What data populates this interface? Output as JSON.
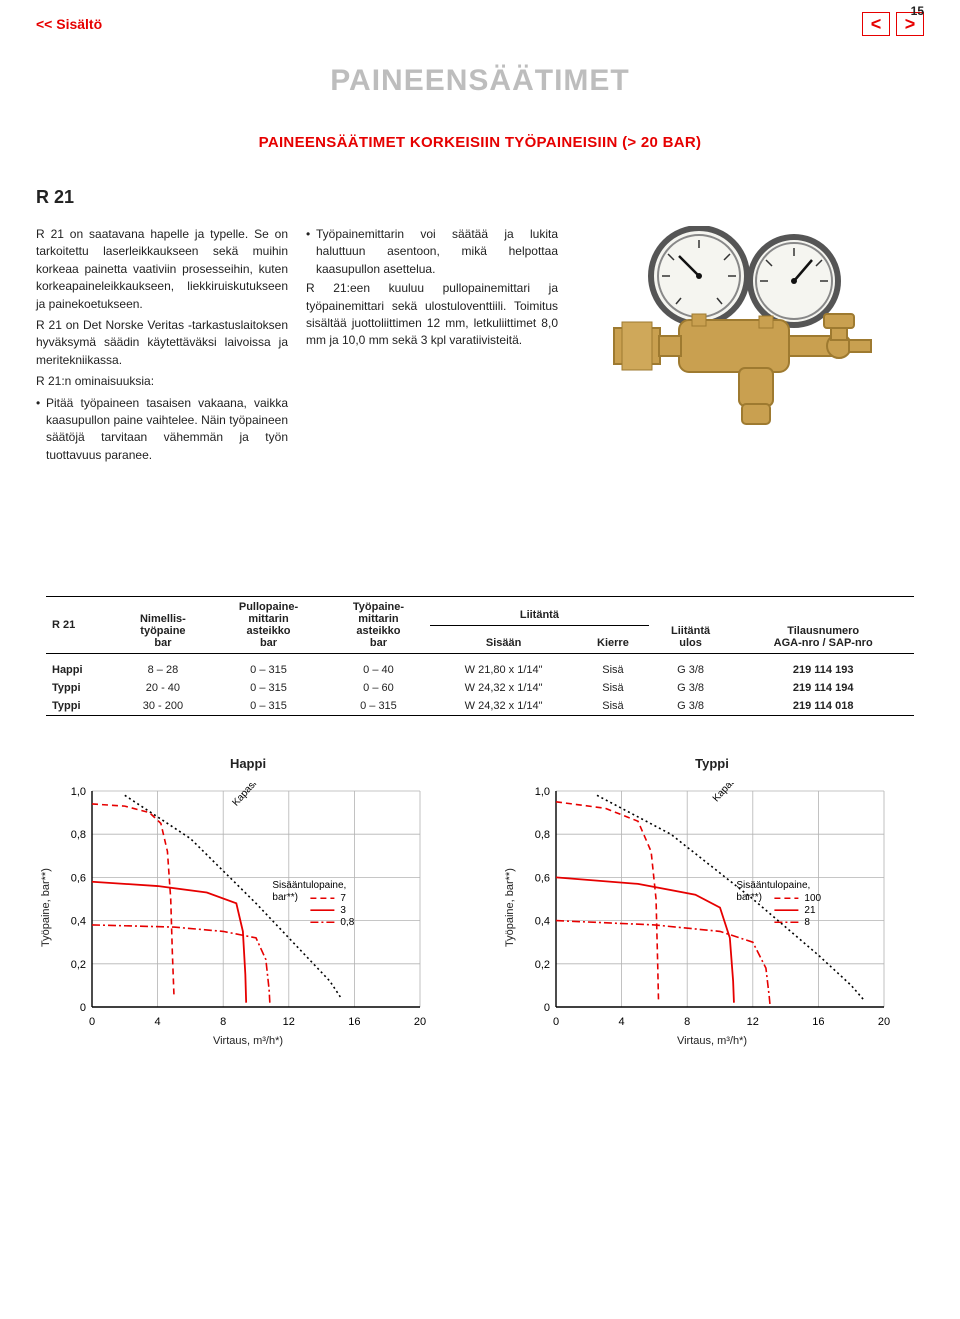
{
  "page_number": "15",
  "nav": {
    "back_link": "<< Sisältö",
    "prev": "<",
    "next": ">"
  },
  "title": "PAINEENSÄÄTIMET",
  "subtitle": "PAINEENSÄÄTIMET KORKEISIIN TYÖPAINEISIIN (> 20 BAR)",
  "product_heading": "R 21",
  "col1": {
    "p1": "R 21 on saatavana hapelle ja typelle. Se on tarkoitettu laserleikkaukseen sekä muihin korkeaa painetta vaativiin prosesseihin, kuten korkeapaineleikkaukseen, liekkiruiskutukseen ja painekoetukseen.",
    "p2": "R 21 on Det Norske Veritas -tarkastuslaitoksen hyväksymä säädin käytettäväksi laivoissa ja meritekniikassa.",
    "p3": "R 21:n ominaisuuksia:",
    "b1": "Pitää työpaineen tasaisen vakaana, vaikka kaasupullon paine vaihtelee. Näin työpaineen säätöjä tarvitaan vähemmän ja työn tuottavuus paranee."
  },
  "col2": {
    "b1": "Työpainemittarin voi säätää ja lukita haluttuun asentoon, mikä helpottaa kaasupullon asettelua.",
    "p1": "R 21:een kuuluu pullopainemittari ja työpainemittari sekä ulostuloventtiili. Toimitus sisältää juottoliittimen 12 mm, letkuliittimet 8,0 mm ja 10,0 mm sekä 3 kpl varatiivisteitä."
  },
  "table": {
    "headers": {
      "c0": "R 21",
      "c1a": "Nimellis-",
      "c1b": "työpaine",
      "c1c": "bar",
      "c2a": "Pullopaine-",
      "c2b": "mittarin",
      "c2c": "asteikko",
      "c2d": "bar",
      "c3a": "Työpaine-",
      "c3b": "mittarin",
      "c3c": "asteikko",
      "c3d": "bar",
      "c4": "Liitäntä",
      "c5": "Sisään",
      "c6": "Kierre",
      "c7a": "Liitäntä",
      "c7b": "ulos",
      "c8a": "Tilausnumero",
      "c8b": "AGA-nro / SAP-nro"
    },
    "rows": [
      {
        "gas": "Happi",
        "nom": "8 – 28",
        "cyl": "0 – 315",
        "work": "0 – 40",
        "in": "W 21,80 x 1/14\"",
        "kierre": "Sisä",
        "out": "G 3/8",
        "order": "219 114 193"
      },
      {
        "gas": "Typpi",
        "nom": "20 - 40",
        "cyl": "0 – 315",
        "work": "0 – 60",
        "in": "W 24,32 x 1/14\"",
        "kierre": "Sisä",
        "out": "G 3/8",
        "order": "219 114 194"
      },
      {
        "gas": "Typpi",
        "nom": "30 - 200",
        "cyl": "0 – 315",
        "work": "0 – 315",
        "in": "W 24,32 x 1/14\"",
        "kierre": "Sisä",
        "out": "G 3/8",
        "order": "219 114 018"
      }
    ]
  },
  "charts": {
    "left": {
      "title": "Happi",
      "ylabel": "Työpaine, bar**)",
      "xlabel": "Virtaus, m³/h*)",
      "kapasiteetti": "Kapasiteetti",
      "inlet_label_a": "Sisääntulopaine,",
      "inlet_label_b": "bar**)",
      "leg1": "7",
      "leg2": "3",
      "leg3": "0,8",
      "xlim": [
        0,
        20
      ],
      "ylim": [
        0,
        1.0
      ],
      "xticks": [
        "0",
        "4",
        "8",
        "12",
        "16",
        "20"
      ],
      "yticks": [
        "0",
        "0,2",
        "0,4",
        "0,6",
        "0,8",
        "1,0"
      ],
      "grid_color": "#b3b3b3",
      "series_color": "#e60000",
      "kap_color": "#000000",
      "curves": {
        "dash_top": [
          [
            0,
            0.94
          ],
          [
            2,
            0.93
          ],
          [
            3.5,
            0.9
          ],
          [
            4.2,
            0.85
          ],
          [
            4.6,
            0.72
          ],
          [
            4.8,
            0.5
          ],
          [
            4.9,
            0.25
          ],
          [
            5,
            0.05
          ]
        ],
        "solid_mid": [
          [
            0,
            0.58
          ],
          [
            4,
            0.56
          ],
          [
            7,
            0.53
          ],
          [
            8.8,
            0.48
          ],
          [
            9.2,
            0.35
          ],
          [
            9.35,
            0.15
          ],
          [
            9.4,
            0.02
          ]
        ],
        "dashdot": [
          [
            0,
            0.38
          ],
          [
            5,
            0.37
          ],
          [
            8,
            0.35
          ],
          [
            10,
            0.32
          ],
          [
            10.6,
            0.22
          ],
          [
            10.8,
            0.08
          ],
          [
            10.85,
            0.01
          ]
        ],
        "kap": [
          [
            2,
            0.98
          ],
          [
            6,
            0.78
          ],
          [
            10,
            0.48
          ],
          [
            13,
            0.24
          ],
          [
            14.5,
            0.12
          ],
          [
            15.2,
            0.04
          ]
        ]
      }
    },
    "right": {
      "title": "Typpi",
      "ylabel": "Työpaine, bar**)",
      "xlabel": "Virtaus, m³/h*)",
      "kapasiteetti": "Kapasiteetti",
      "inlet_label_a": "Sisääntulopaine,",
      "inlet_label_b": "bar**)",
      "leg1": "100",
      "leg2": "21",
      "leg3": "8",
      "xlim": [
        0,
        20
      ],
      "ylim": [
        0,
        1.0
      ],
      "xticks": [
        "0",
        "4",
        "8",
        "12",
        "16",
        "20"
      ],
      "yticks": [
        "0",
        "0,2",
        "0,4",
        "0,6",
        "0,8",
        "1,0"
      ],
      "grid_color": "#b3b3b3",
      "series_color": "#e60000",
      "kap_color": "#000000",
      "curves": {
        "dash_top": [
          [
            0,
            0.95
          ],
          [
            3,
            0.92
          ],
          [
            5,
            0.86
          ],
          [
            5.8,
            0.72
          ],
          [
            6.1,
            0.5
          ],
          [
            6.2,
            0.2
          ],
          [
            6.25,
            0.03
          ]
        ],
        "solid_mid": [
          [
            0,
            0.6
          ],
          [
            5,
            0.57
          ],
          [
            8.5,
            0.52
          ],
          [
            10,
            0.46
          ],
          [
            10.6,
            0.32
          ],
          [
            10.8,
            0.12
          ],
          [
            10.85,
            0.02
          ]
        ],
        "dashdot": [
          [
            0,
            0.4
          ],
          [
            6,
            0.38
          ],
          [
            10,
            0.35
          ],
          [
            12,
            0.3
          ],
          [
            12.8,
            0.18
          ],
          [
            13,
            0.05
          ],
          [
            13.05,
            0.01
          ]
        ],
        "kap": [
          [
            2.5,
            0.98
          ],
          [
            7,
            0.8
          ],
          [
            12,
            0.5
          ],
          [
            16,
            0.24
          ],
          [
            18,
            0.1
          ],
          [
            18.8,
            0.03
          ]
        ]
      }
    }
  },
  "regulator_colors": {
    "brass": "#c9a050",
    "brass_dark": "#9e7a30",
    "gauge_face": "#f5f5f0",
    "gauge_rim": "#555555",
    "needle": "#111111"
  }
}
